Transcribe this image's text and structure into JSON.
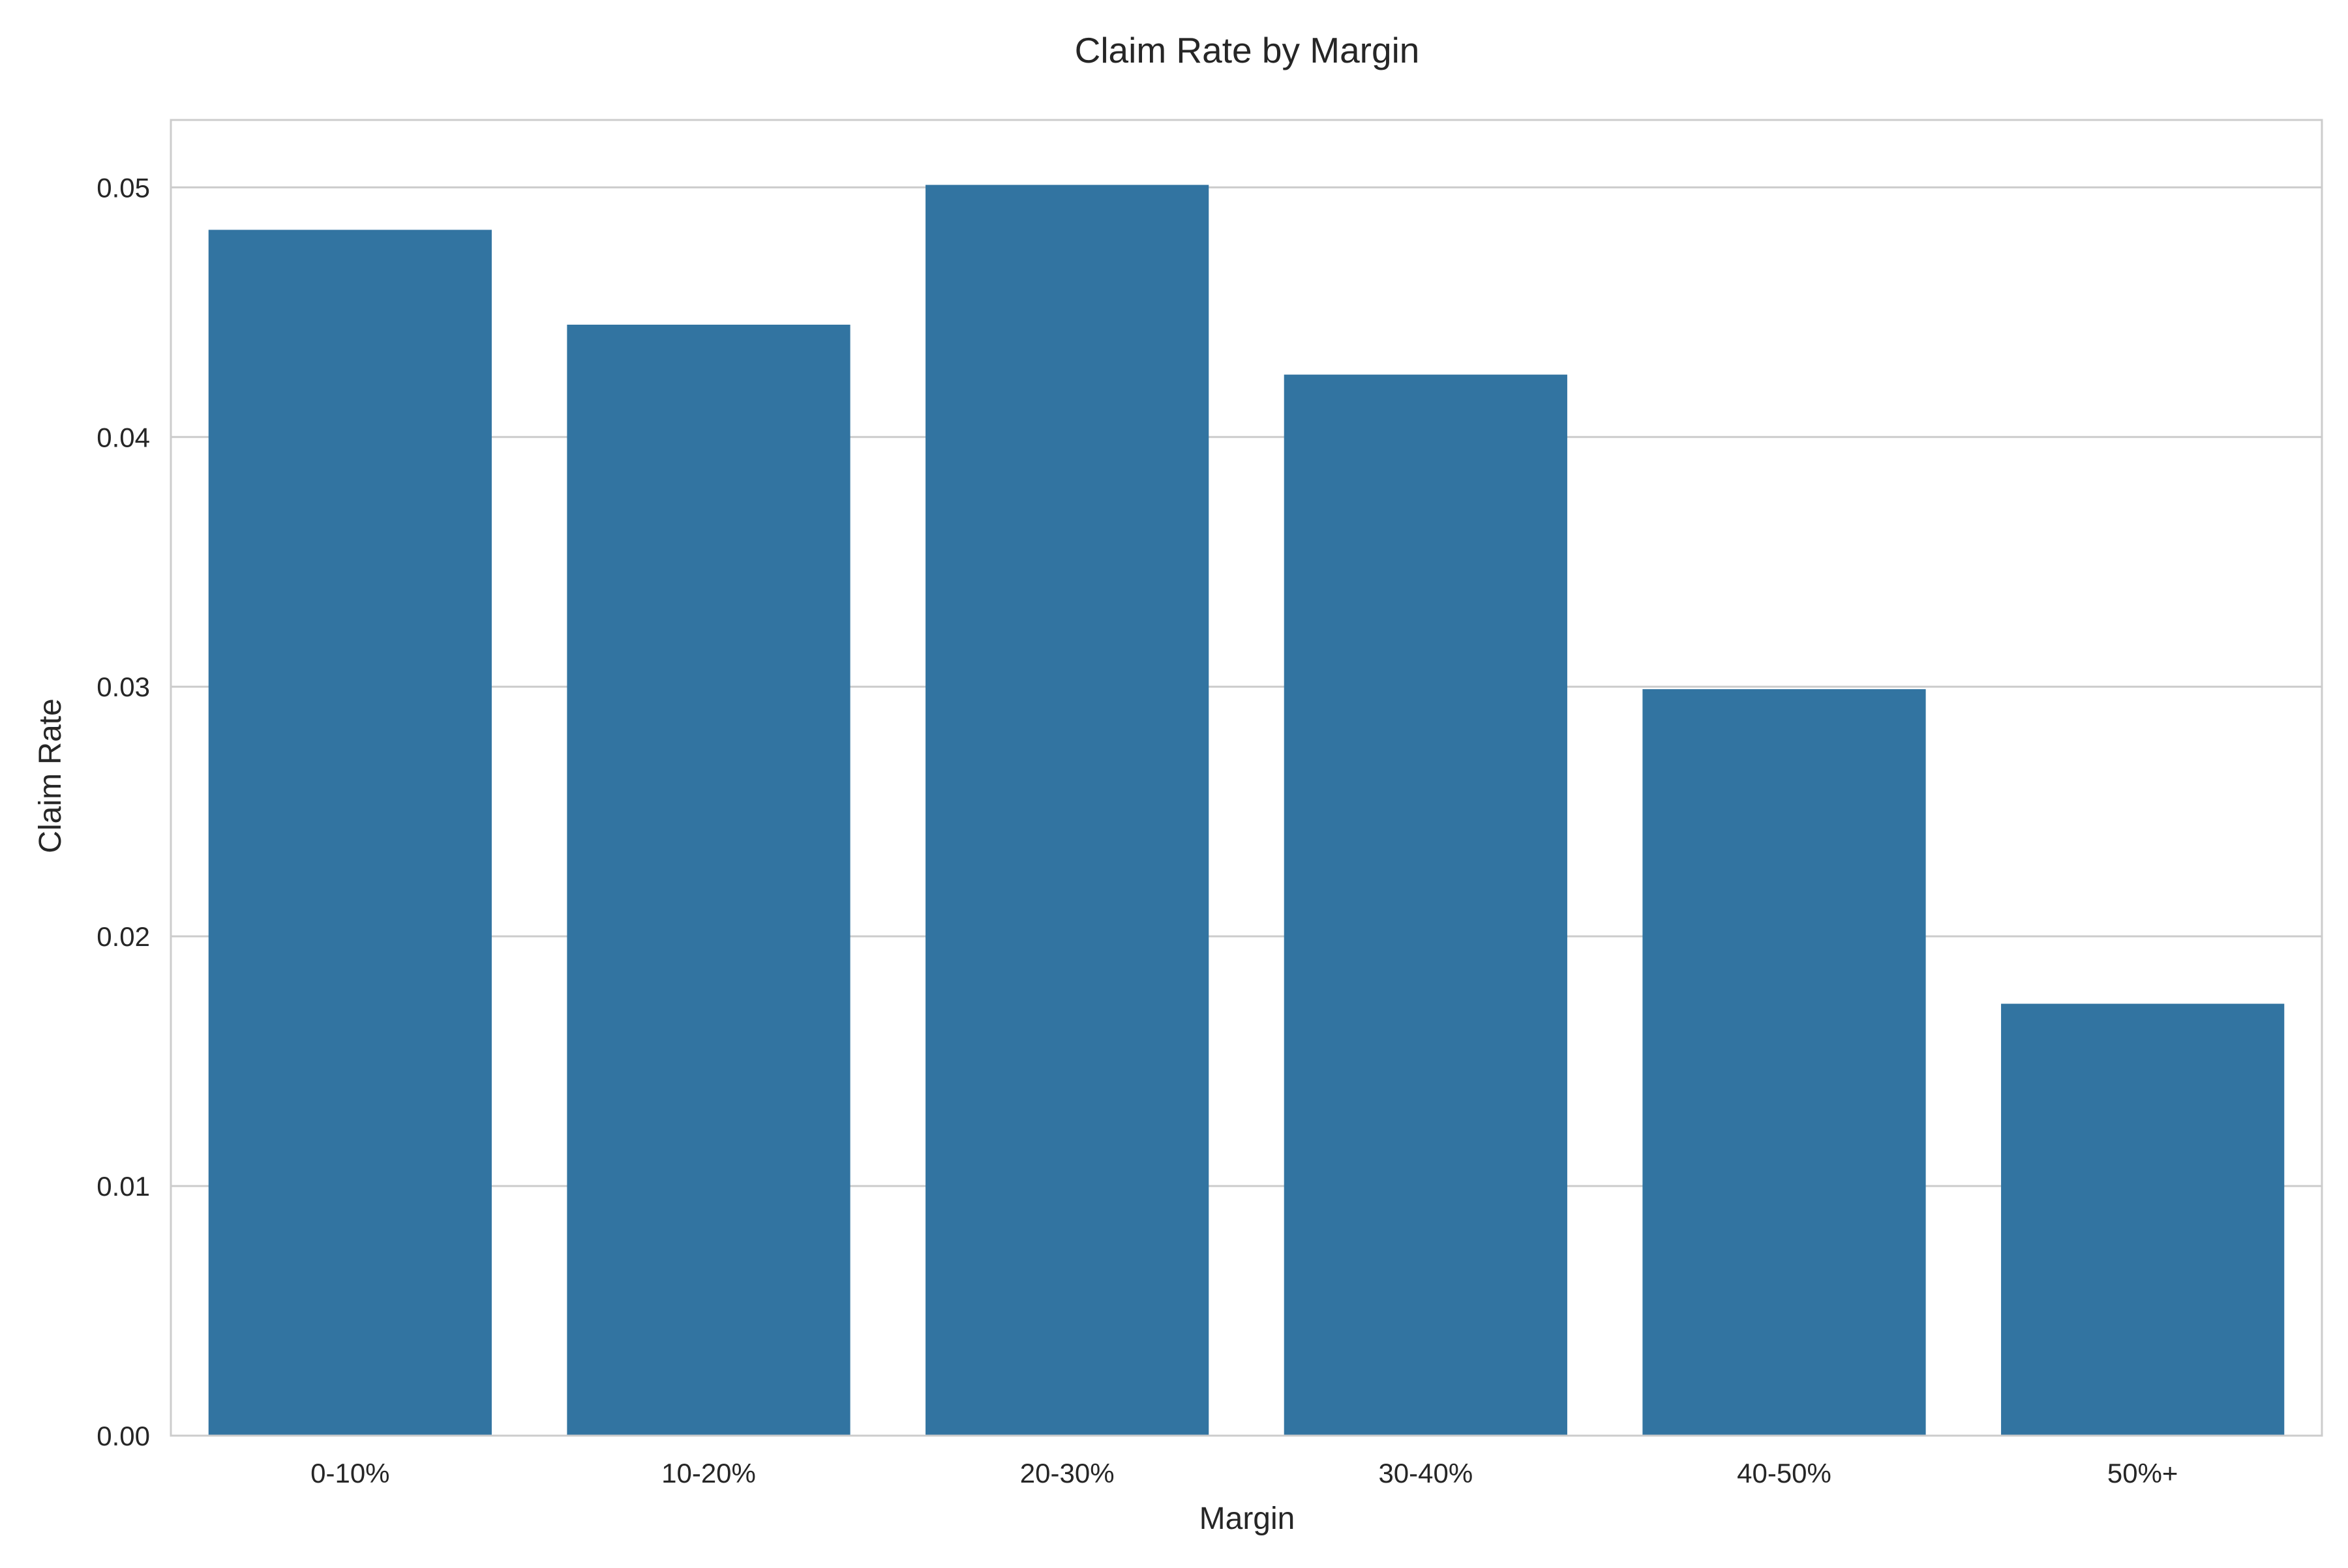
{
  "chart_data": {
    "type": "bar",
    "title": "Claim Rate by Margin",
    "xlabel": "Margin",
    "ylabel": "Claim Rate",
    "categories": [
      "0-10%",
      "10-20%",
      "20-30%",
      "30-40%",
      "40-50%",
      "50%+"
    ],
    "values": [
      0.0483,
      0.0445,
      0.0501,
      0.0425,
      0.0299,
      0.0173
    ],
    "ylim": [
      0,
      0.0527
    ],
    "yticks": [
      0.0,
      0.01,
      0.02,
      0.03,
      0.04,
      0.05
    ],
    "ytick_labels": [
      "0.00",
      "0.01",
      "0.02",
      "0.03",
      "0.04",
      "0.05"
    ],
    "grid": "horizontal",
    "colors": {
      "bar": "#3274a1",
      "grid": "#cccccc",
      "spine": "#cccccc",
      "text": "#262626",
      "background": "#ffffff"
    }
  }
}
